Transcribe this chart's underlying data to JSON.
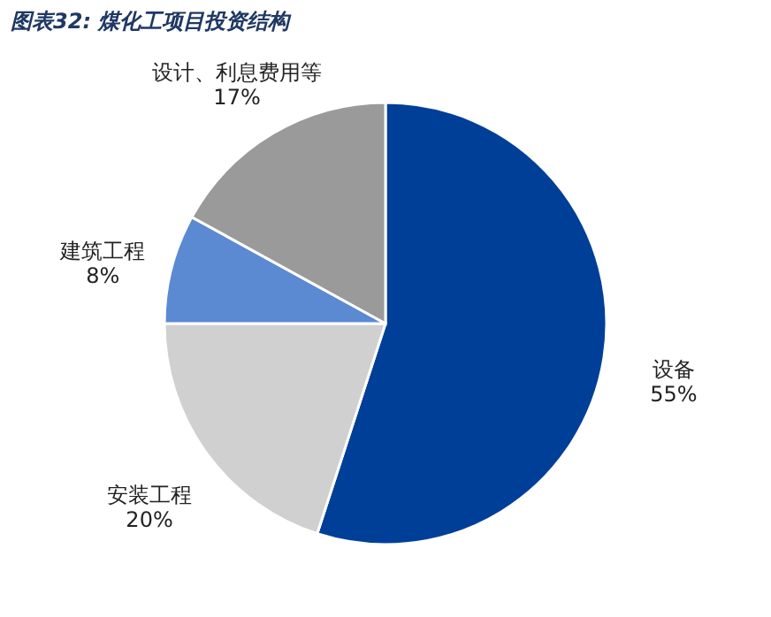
{
  "chart_data": {
    "type": "pie",
    "title": "图表32: 煤化工项目投资结构",
    "categories": [
      "设备",
      "安装工程",
      "建筑工程",
      "设计、利息费用等"
    ],
    "values": [
      55,
      20,
      8,
      17
    ],
    "colors": [
      "#003f98",
      "#d0d0d0",
      "#5b8ad3",
      "#9a9a9a"
    ],
    "value_labels": [
      "55%",
      "20%",
      "8%",
      "17%"
    ],
    "legend": false
  }
}
